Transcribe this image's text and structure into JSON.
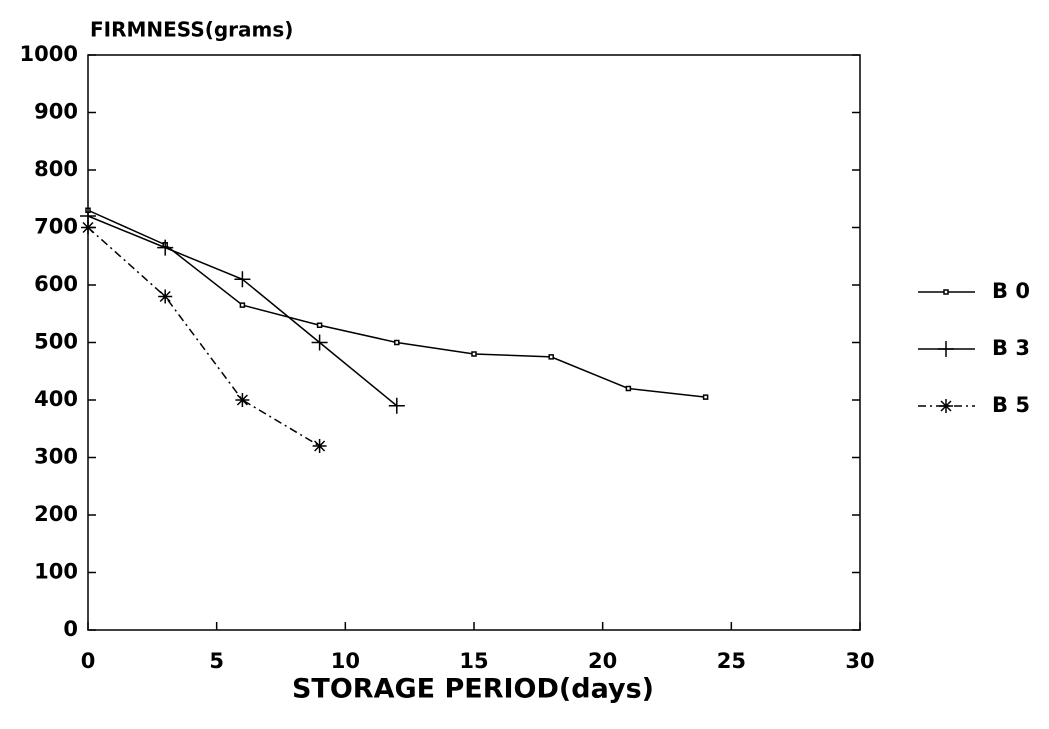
{
  "chart_data": {
    "type": "line",
    "title": "FIRMNESS(grams)",
    "x_label": "STORAGE PERIOD(days)",
    "xlim": [
      0,
      30
    ],
    "ylim": [
      0,
      1000
    ],
    "xticks": [
      0,
      5,
      10,
      15,
      20,
      25,
      30
    ],
    "yticks": [
      0,
      100,
      200,
      300,
      400,
      500,
      600,
      700,
      800,
      900,
      1000
    ],
    "legend": "right",
    "series": [
      {
        "name": "B 0",
        "color": "#000000",
        "marker": "square",
        "linestyle": "solid",
        "x": [
          0,
          3,
          6,
          9,
          12,
          15,
          18,
          21,
          24
        ],
        "values": [
          730,
          670,
          565,
          530,
          500,
          480,
          475,
          420,
          405
        ]
      },
      {
        "name": "B 3",
        "color": "#000000",
        "marker": "plus",
        "linestyle": "solid",
        "x": [
          0,
          3,
          6,
          9,
          12
        ],
        "values": [
          720,
          665,
          610,
          500,
          390
        ]
      },
      {
        "name": "B 5",
        "color": "#000000",
        "marker": "asterisk",
        "linestyle": "dashdot",
        "x": [
          0,
          3,
          6,
          9
        ],
        "values": [
          700,
          580,
          400,
          320
        ]
      }
    ]
  }
}
